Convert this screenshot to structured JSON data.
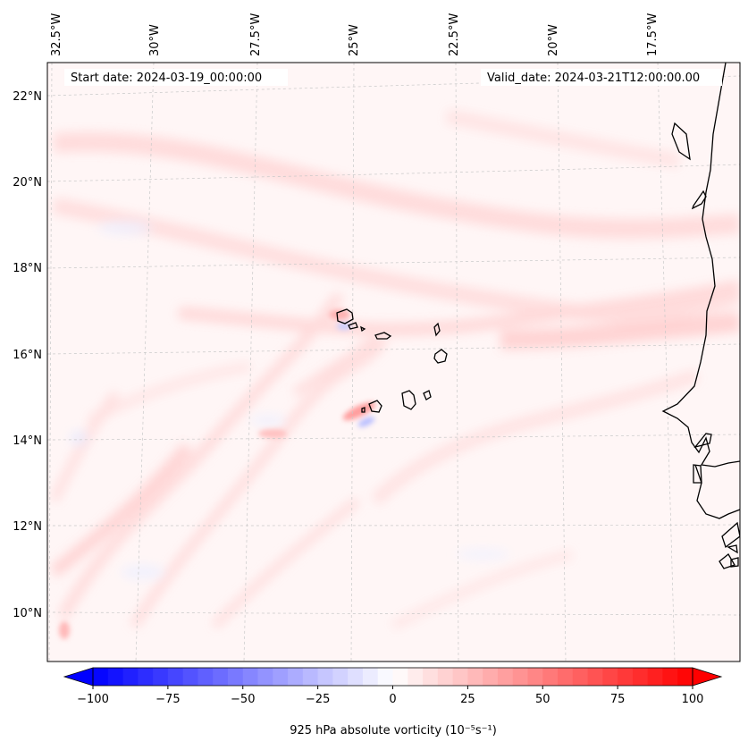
{
  "map": {
    "start_date_label": "Start date: 2024-03-19_00:00:00",
    "valid_date_label": "Valid_date: 2024-03-21T12:00:00.00",
    "lon_labels": [
      "32.5°W",
      "30°W",
      "27.5°W",
      "25°W",
      "22.5°W",
      "20°W",
      "17.5°W"
    ],
    "lat_labels": [
      "22°N",
      "20°N",
      "18°N",
      "16°N",
      "14°N",
      "12°N",
      "10°N"
    ],
    "field_variable": "925 hPa absolute vorticity",
    "colors": {
      "negative_max": "#0000ff",
      "positive_max": "#ff0000",
      "background_field": "#fff5f5",
      "coastline": "#000000",
      "gridline": "#c8c8c8"
    }
  },
  "colorbar": {
    "label": "925 hPa absolute vorticity (10⁻⁵s⁻¹)",
    "ticks": [
      "−100",
      "−75",
      "−50",
      "−25",
      "0",
      "25",
      "50",
      "75",
      "100"
    ],
    "range": [
      -100,
      100
    ],
    "extend": "both",
    "cmap": "bwr"
  }
}
